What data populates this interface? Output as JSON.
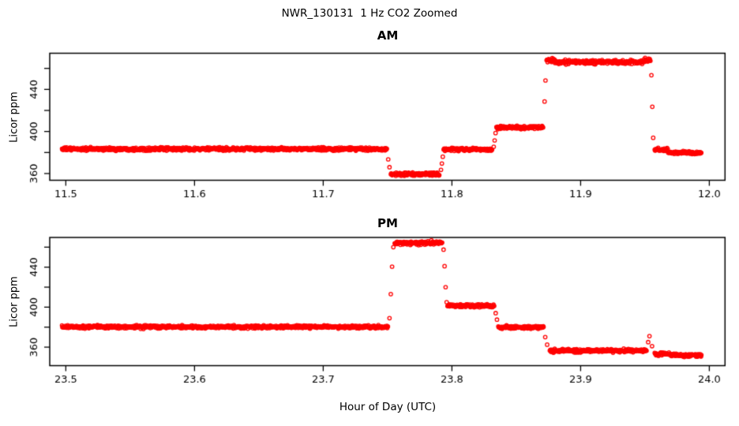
{
  "figure": {
    "title": "NWR_130131  1 Hz CO2 Zoomed",
    "xlabel": "Hour of Day (UTC)",
    "panels": [
      {
        "title": "AM",
        "ylabel": "Licor ppm"
      },
      {
        "title": "PM",
        "ylabel": "Licor ppm"
      }
    ]
  },
  "chart_data": [
    {
      "panel": "AM",
      "type": "scatter",
      "marker": "open-circle",
      "color": "#FF0000",
      "title": "AM",
      "xlabel": "Hour of Day (UTC)",
      "ylabel": "Licor ppm",
      "sample_rate_hz": 1,
      "xlim": [
        11.4875,
        12.0122
      ],
      "ylim": [
        353.6,
        474.4
      ],
      "x_ticks": [
        {
          "value": 11.5,
          "label": "11.5"
        },
        {
          "value": 11.6,
          "label": "11.6"
        },
        {
          "value": 11.7,
          "label": "11.7"
        },
        {
          "value": 11.8,
          "label": "11.8"
        },
        {
          "value": 11.9,
          "label": "11.9"
        },
        {
          "value": 12.0,
          "label": "12.0"
        }
      ],
      "y_ticks": [
        {
          "value": 360,
          "label": "360"
        },
        {
          "value": 380,
          "label": ""
        },
        {
          "value": 400,
          "label": "400"
        },
        {
          "value": 420,
          "label": ""
        },
        {
          "value": 440,
          "label": "440"
        },
        {
          "value": 460,
          "label": ""
        }
      ],
      "segments": [
        {
          "x0": 11.497,
          "x1": 11.7495,
          "level": 383.3,
          "noise": 0.9
        },
        {
          "x0": 11.7525,
          "x1": 11.7905,
          "level": 359.3,
          "noise": 1.0
        },
        {
          "x0": 11.7935,
          "x1": 11.8315,
          "level": 383.0,
          "noise": 0.9
        },
        {
          "x0": 11.8345,
          "x1": 11.871,
          "level": 403.8,
          "noise": 0.9
        },
        {
          "x0": 11.8735,
          "x1": 11.88,
          "level": 467.8,
          "noise": 1.2
        },
        {
          "x0": 11.88,
          "x1": 11.949,
          "level": 466.0,
          "noise": 1.1
        },
        {
          "x0": 11.949,
          "x1": 11.9545,
          "level": 467.5,
          "noise": 1.2
        },
        {
          "x0": 11.9575,
          "x1": 11.968,
          "level": 382.5,
          "noise": 1.0
        },
        {
          "x0": 11.968,
          "x1": 11.994,
          "level": 379.8,
          "noise": 0.9
        }
      ],
      "transitions": [
        {
          "x": 11.7505,
          "y": 373.5
        },
        {
          "x": 11.7515,
          "y": 366.0
        },
        {
          "x": 11.7915,
          "y": 363.5
        },
        {
          "x": 11.7922,
          "y": 369.5
        },
        {
          "x": 11.7929,
          "y": 376.0
        },
        {
          "x": 11.8325,
          "y": 385.5
        },
        {
          "x": 11.8332,
          "y": 391.5
        },
        {
          "x": 11.8339,
          "y": 398.5
        },
        {
          "x": 11.872,
          "y": 428.5
        },
        {
          "x": 11.8727,
          "y": 448.5
        },
        {
          "x": 11.955,
          "y": 453.5
        },
        {
          "x": 11.9557,
          "y": 423.5
        },
        {
          "x": 11.9564,
          "y": 394.0
        }
      ]
    },
    {
      "panel": "PM",
      "type": "scatter",
      "marker": "open-circle",
      "color": "#FF0000",
      "title": "PM",
      "xlabel": "Hour of Day (UTC)",
      "ylabel": "Licor ppm",
      "sample_rate_hz": 1,
      "xlim": [
        23.4875,
        24.0122
      ],
      "ylim": [
        341.5,
        469.7
      ],
      "x_ticks": [
        {
          "value": 23.5,
          "label": "23.5"
        },
        {
          "value": 23.6,
          "label": "23.6"
        },
        {
          "value": 23.7,
          "label": "23.7"
        },
        {
          "value": 23.8,
          "label": "23.8"
        },
        {
          "value": 23.9,
          "label": "23.9"
        },
        {
          "value": 24.0,
          "label": "24.0"
        }
      ],
      "y_ticks": [
        {
          "value": 360,
          "label": "360"
        },
        {
          "value": 380,
          "label": ""
        },
        {
          "value": 400,
          "label": "400"
        },
        {
          "value": 420,
          "label": ""
        },
        {
          "value": 440,
          "label": "440"
        },
        {
          "value": 460,
          "label": ""
        }
      ],
      "segments": [
        {
          "x0": 23.497,
          "x1": 23.7505,
          "level": 380.2,
          "noise": 0.9
        },
        {
          "x0": 23.7555,
          "x1": 23.7925,
          "level": 464.3,
          "noise": 1.1
        },
        {
          "x0": 23.7965,
          "x1": 23.833,
          "level": 401.5,
          "noise": 0.9
        },
        {
          "x0": 23.836,
          "x1": 23.8715,
          "level": 379.8,
          "noise": 0.9
        },
        {
          "x0": 23.876,
          "x1": 23.9515,
          "level": 356.5,
          "noise": 1.0
        },
        {
          "x0": 23.9575,
          "x1": 23.97,
          "level": 353.2,
          "noise": 1.0
        },
        {
          "x0": 23.97,
          "x1": 23.994,
          "level": 351.8,
          "noise": 0.9
        }
      ],
      "transitions": [
        {
          "x": 23.7515,
          "y": 389.0
        },
        {
          "x": 23.7525,
          "y": 413.0
        },
        {
          "x": 23.7535,
          "y": 440.5
        },
        {
          "x": 23.7545,
          "y": 460.0
        },
        {
          "x": 23.7935,
          "y": 457.5
        },
        {
          "x": 23.7943,
          "y": 441.0
        },
        {
          "x": 23.7951,
          "y": 420.0
        },
        {
          "x": 23.7959,
          "y": 405.0
        },
        {
          "x": 23.834,
          "y": 394.0
        },
        {
          "x": 23.835,
          "y": 387.5
        },
        {
          "x": 23.8725,
          "y": 370.0
        },
        {
          "x": 23.874,
          "y": 362.5
        },
        {
          "x": 23.9525,
          "y": 365.0
        },
        {
          "x": 23.9535,
          "y": 371.0
        },
        {
          "x": 23.9555,
          "y": 361.0
        }
      ]
    }
  ]
}
